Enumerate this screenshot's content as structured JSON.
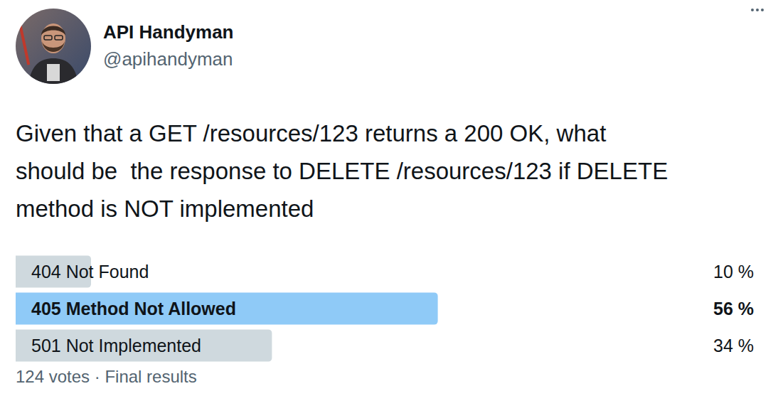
{
  "author": {
    "name": "API Handyman",
    "handle": "@apihandyman"
  },
  "text_lines": [
    "Given that a GET /resources/123 returns a 200 OK, what",
    "should be  the response to DELETE /resources/123 if DELETE",
    "method is NOT implemented"
  ],
  "chart_data": {
    "type": "bar",
    "orientation": "horizontal",
    "categories": [
      "404 Not Found",
      "405 Method Not Allowed",
      "501 Not Implemented"
    ],
    "values": [
      10,
      56,
      34
    ],
    "value_labels": [
      "10 %",
      "56 %",
      "34 %"
    ],
    "colors": [
      "#cfd9de",
      "#8fcaf7",
      "#cfd9de"
    ],
    "xlim": [
      0,
      100
    ],
    "data_labels": true,
    "tick_labels": false,
    "grid": false
  },
  "footer": "124 votes · Final results"
}
